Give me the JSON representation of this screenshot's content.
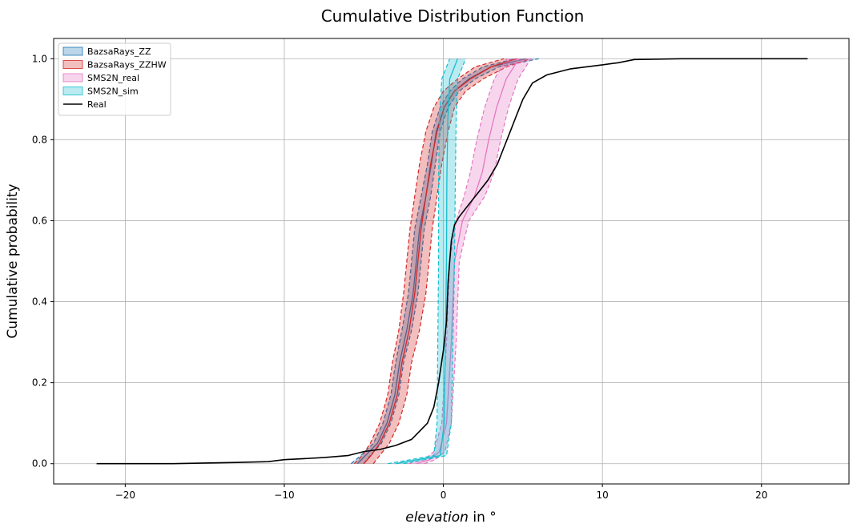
{
  "chart_data": {
    "type": "line",
    "title": "Cumulative Distribution Function",
    "xlabel_italic": "elevation",
    "xlabel_rest": " in °",
    "ylabel": "Cumulative probability",
    "xlim": [
      -24.5,
      25.5
    ],
    "ylim": [
      -0.05,
      1.05
    ],
    "xticks": [
      -20,
      -10,
      0,
      10,
      20
    ],
    "xtick_labels": [
      "−20",
      "−10",
      "0",
      "10",
      "20"
    ],
    "yticks": [
      0.0,
      0.2,
      0.4,
      0.6,
      0.8,
      1.0
    ],
    "ytick_labels": [
      "0.0",
      "0.2",
      "0.4",
      "0.6",
      "0.8",
      "1.0"
    ],
    "grid": true,
    "legend_position": "top-left",
    "bands": [
      {
        "name": "BazsaRays_ZZ",
        "fill": "#1f77b4",
        "line": "#1f77b4",
        "lower": [
          [
            -5.0,
            0
          ],
          [
            -4.6,
            0.02
          ],
          [
            -3.9,
            0.05
          ],
          [
            -3.3,
            0.1
          ],
          [
            -2.8,
            0.17
          ],
          [
            -2.5,
            0.25
          ],
          [
            -2.0,
            0.33
          ],
          [
            -1.6,
            0.42
          ],
          [
            -1.4,
            0.5
          ],
          [
            -1.2,
            0.58
          ],
          [
            -0.8,
            0.66
          ],
          [
            -0.5,
            0.74
          ],
          [
            -0.2,
            0.82
          ],
          [
            0.3,
            0.88
          ],
          [
            1.0,
            0.92
          ],
          [
            2.0,
            0.95
          ],
          [
            3.5,
            0.98
          ],
          [
            6.0,
            1.0
          ]
        ],
        "upper": [
          [
            -5.8,
            0
          ],
          [
            -5.2,
            0.02
          ],
          [
            -4.4,
            0.05
          ],
          [
            -3.8,
            0.1
          ],
          [
            -3.3,
            0.17
          ],
          [
            -3.0,
            0.25
          ],
          [
            -2.6,
            0.33
          ],
          [
            -2.2,
            0.42
          ],
          [
            -2.0,
            0.5
          ],
          [
            -1.8,
            0.58
          ],
          [
            -1.4,
            0.66
          ],
          [
            -1.0,
            0.74
          ],
          [
            -0.7,
            0.82
          ],
          [
            -0.2,
            0.88
          ],
          [
            0.4,
            0.92
          ],
          [
            1.2,
            0.95
          ],
          [
            2.5,
            0.98
          ],
          [
            4.5,
            1.0
          ]
        ],
        "mean": [
          [
            -5.4,
            0
          ],
          [
            -4.9,
            0.02
          ],
          [
            -4.15,
            0.05
          ],
          [
            -3.55,
            0.1
          ],
          [
            -3.05,
            0.17
          ],
          [
            -2.75,
            0.25
          ],
          [
            -2.3,
            0.33
          ],
          [
            -1.9,
            0.42
          ],
          [
            -1.7,
            0.5
          ],
          [
            -1.5,
            0.58
          ],
          [
            -1.1,
            0.66
          ],
          [
            -0.75,
            0.74
          ],
          [
            -0.45,
            0.82
          ],
          [
            0.05,
            0.88
          ],
          [
            0.7,
            0.92
          ],
          [
            1.6,
            0.95
          ],
          [
            3.0,
            0.98
          ],
          [
            5.2,
            1.0
          ]
        ]
      },
      {
        "name": "BazsaRays_ZZHW",
        "fill": "#d62728",
        "line": "#d62728",
        "lower": [
          [
            -4.4,
            0
          ],
          [
            -4.0,
            0.02
          ],
          [
            -3.4,
            0.05
          ],
          [
            -2.8,
            0.1
          ],
          [
            -2.3,
            0.17
          ],
          [
            -2.0,
            0.25
          ],
          [
            -1.5,
            0.33
          ],
          [
            -1.1,
            0.42
          ],
          [
            -0.9,
            0.5
          ],
          [
            -0.7,
            0.58
          ],
          [
            -0.4,
            0.66
          ],
          [
            -0.1,
            0.74
          ],
          [
            0.3,
            0.82
          ],
          [
            0.7,
            0.88
          ],
          [
            1.4,
            0.92
          ],
          [
            2.5,
            0.95
          ],
          [
            4.0,
            0.98
          ],
          [
            5.5,
            1.0
          ]
        ],
        "upper": [
          [
            -5.6,
            0
          ],
          [
            -5.1,
            0.02
          ],
          [
            -4.6,
            0.05
          ],
          [
            -4.0,
            0.1
          ],
          [
            -3.5,
            0.17
          ],
          [
            -3.2,
            0.25
          ],
          [
            -2.8,
            0.33
          ],
          [
            -2.5,
            0.42
          ],
          [
            -2.3,
            0.5
          ],
          [
            -2.1,
            0.58
          ],
          [
            -1.8,
            0.66
          ],
          [
            -1.5,
            0.74
          ],
          [
            -1.1,
            0.82
          ],
          [
            -0.6,
            0.88
          ],
          [
            0.0,
            0.92
          ],
          [
            0.9,
            0.95
          ],
          [
            2.0,
            0.98
          ],
          [
            3.8,
            1.0
          ]
        ],
        "mean": [
          [
            -5.0,
            0
          ],
          [
            -4.55,
            0.02
          ],
          [
            -4.0,
            0.05
          ],
          [
            -3.4,
            0.1
          ],
          [
            -2.9,
            0.17
          ],
          [
            -2.6,
            0.25
          ],
          [
            -2.15,
            0.33
          ],
          [
            -1.8,
            0.42
          ],
          [
            -1.6,
            0.5
          ],
          [
            -1.4,
            0.58
          ],
          [
            -1.1,
            0.66
          ],
          [
            -0.8,
            0.74
          ],
          [
            -0.4,
            0.82
          ],
          [
            0.05,
            0.88
          ],
          [
            0.7,
            0.92
          ],
          [
            1.7,
            0.95
          ],
          [
            3.0,
            0.98
          ],
          [
            4.6,
            1.0
          ]
        ]
      },
      {
        "name": "SMS2N_real",
        "fill": "#e377c2",
        "line": "#e377c2",
        "lower": [
          [
            -1.2,
            0
          ],
          [
            -0.5,
            0.01
          ],
          [
            0.1,
            0.03
          ],
          [
            0.5,
            0.1
          ],
          [
            0.8,
            0.3
          ],
          [
            1.0,
            0.5
          ],
          [
            1.6,
            0.6
          ],
          [
            2.6,
            0.66
          ],
          [
            3.2,
            0.72
          ],
          [
            3.6,
            0.8
          ],
          [
            4.1,
            0.88
          ],
          [
            4.7,
            0.95
          ],
          [
            5.5,
            1.0
          ]
        ],
        "upper": [
          [
            -2.2,
            0
          ],
          [
            -1.2,
            0.01
          ],
          [
            -0.6,
            0.03
          ],
          [
            -0.1,
            0.1
          ],
          [
            0.2,
            0.3
          ],
          [
            0.4,
            0.5
          ],
          [
            0.8,
            0.6
          ],
          [
            1.3,
            0.66
          ],
          [
            1.7,
            0.72
          ],
          [
            2.1,
            0.8
          ],
          [
            2.6,
            0.88
          ],
          [
            3.2,
            0.95
          ],
          [
            4.0,
            1.0
          ]
        ],
        "mean": [
          [
            -1.7,
            0
          ],
          [
            -0.85,
            0.01
          ],
          [
            -0.25,
            0.03
          ],
          [
            0.2,
            0.1
          ],
          [
            0.5,
            0.3
          ],
          [
            0.7,
            0.5
          ],
          [
            1.2,
            0.6
          ],
          [
            1.95,
            0.66
          ],
          [
            2.45,
            0.72
          ],
          [
            2.85,
            0.8
          ],
          [
            3.35,
            0.88
          ],
          [
            3.95,
            0.95
          ],
          [
            4.75,
            1.0
          ]
        ]
      },
      {
        "name": "SMS2N_sim",
        "fill": "#17becf",
        "line": "#17becf",
        "lower": [
          [
            -2.5,
            0
          ],
          [
            0.2,
            0.02
          ],
          [
            0.5,
            0.1
          ],
          [
            0.6,
            0.3
          ],
          [
            0.7,
            0.5
          ],
          [
            0.75,
            0.7
          ],
          [
            0.8,
            0.85
          ],
          [
            0.9,
            0.95
          ],
          [
            1.4,
            1.0
          ]
        ],
        "upper": [
          [
            -3.5,
            0
          ],
          [
            -0.6,
            0.02
          ],
          [
            -0.4,
            0.1
          ],
          [
            -0.35,
            0.3
          ],
          [
            -0.3,
            0.5
          ],
          [
            -0.3,
            0.7
          ],
          [
            -0.25,
            0.85
          ],
          [
            -0.1,
            0.95
          ],
          [
            0.4,
            1.0
          ]
        ],
        "mean": [
          [
            -3.0,
            0
          ],
          [
            -0.2,
            0.02
          ],
          [
            0.05,
            0.1
          ],
          [
            0.12,
            0.3
          ],
          [
            0.2,
            0.5
          ],
          [
            0.22,
            0.7
          ],
          [
            0.28,
            0.85
          ],
          [
            0.4,
            0.95
          ],
          [
            0.9,
            1.0
          ]
        ]
      }
    ],
    "real": {
      "name": "Real",
      "color": "#000000",
      "points": [
        [
          -21.8,
          0
        ],
        [
          -17,
          0.0
        ],
        [
          -13,
          0.003
        ],
        [
          -11,
          0.005
        ],
        [
          -10,
          0.01
        ],
        [
          -9,
          0.012
        ],
        [
          -7.5,
          0.015
        ],
        [
          -6,
          0.02
        ],
        [
          -5,
          0.03
        ],
        [
          -4,
          0.035
        ],
        [
          -3,
          0.045
        ],
        [
          -2,
          0.06
        ],
        [
          -1.5,
          0.08
        ],
        [
          -1.0,
          0.1
        ],
        [
          -0.6,
          0.14
        ],
        [
          -0.3,
          0.2
        ],
        [
          0,
          0.28
        ],
        [
          0.2,
          0.35
        ],
        [
          0.3,
          0.45
        ],
        [
          0.4,
          0.5
        ],
        [
          0.5,
          0.55
        ],
        [
          0.7,
          0.59
        ],
        [
          1.0,
          0.61
        ],
        [
          1.6,
          0.64
        ],
        [
          2.2,
          0.67
        ],
        [
          2.8,
          0.7
        ],
        [
          3.4,
          0.74
        ],
        [
          3.8,
          0.78
        ],
        [
          4.2,
          0.82
        ],
        [
          4.6,
          0.86
        ],
        [
          5.0,
          0.9
        ],
        [
          5.6,
          0.94
        ],
        [
          6.5,
          0.96
        ],
        [
          8.0,
          0.975
        ],
        [
          10,
          0.985
        ],
        [
          11,
          0.99
        ],
        [
          12,
          0.998
        ],
        [
          15,
          1.0
        ],
        [
          22.9,
          1.0
        ]
      ]
    }
  }
}
